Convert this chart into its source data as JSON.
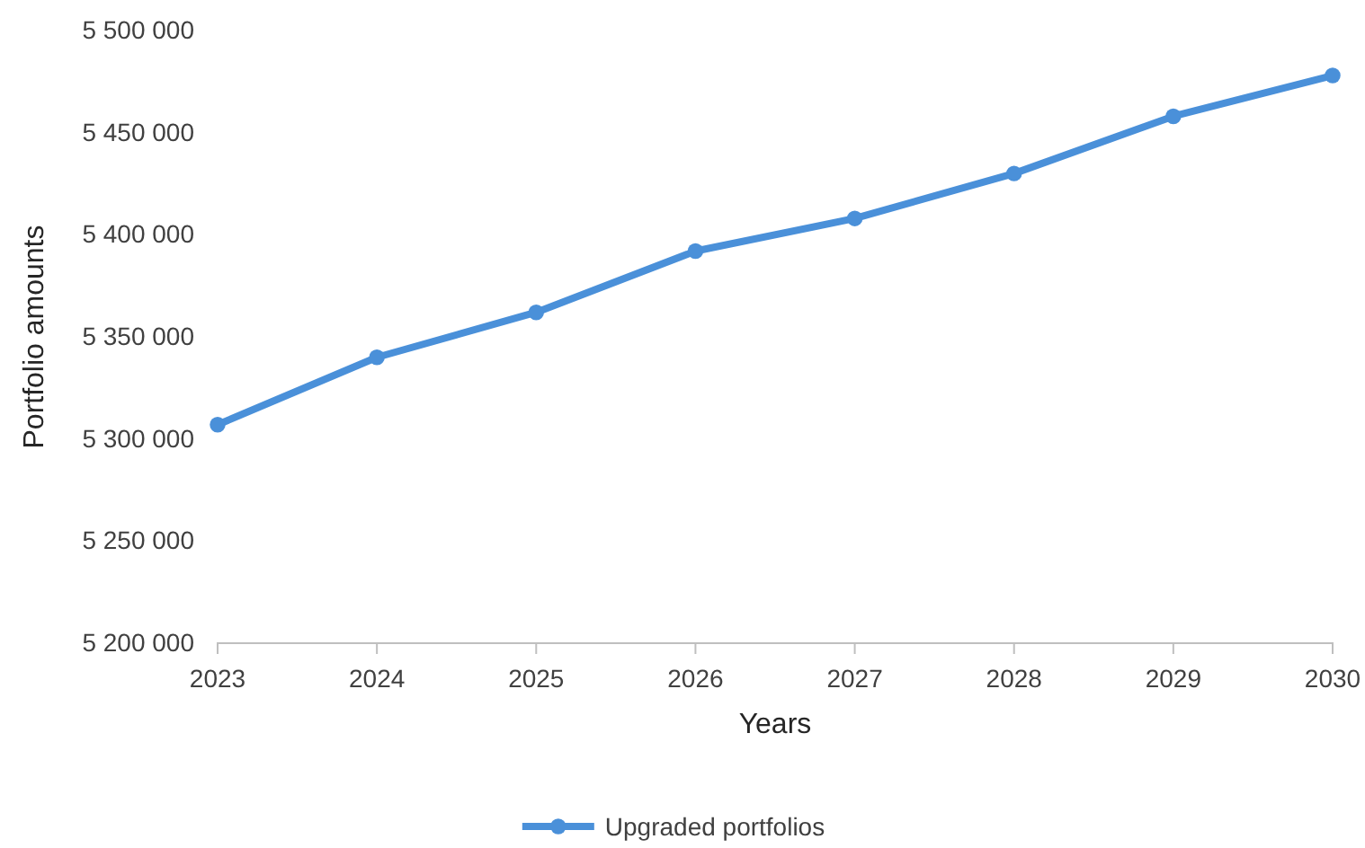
{
  "chart_data": {
    "type": "line",
    "xlabel": "Years",
    "ylabel": "Portfolio amounts",
    "x": [
      2023,
      2024,
      2025,
      2026,
      2027,
      2028,
      2029,
      2030
    ],
    "series": [
      {
        "name": "Upgraded portfolios",
        "color": "#4a90d9",
        "values": [
          5307000,
          5340000,
          5362000,
          5392000,
          5408000,
          5430000,
          5458000,
          5478000
        ]
      }
    ],
    "xlim": [
      2023,
      2030
    ],
    "xticks": [
      2023,
      2024,
      2025,
      2026,
      2027,
      2028,
      2029,
      2030
    ],
    "ylim": [
      5200000,
      5500000
    ],
    "yticks": [
      {
        "value": 5200000,
        "label": "5 200 000"
      },
      {
        "value": 5250000,
        "label": "5 250 000"
      },
      {
        "value": 5300000,
        "label": "5 300 000"
      },
      {
        "value": 5350000,
        "label": "5 350 000"
      },
      {
        "value": 5400000,
        "label": "5 400 000"
      },
      {
        "value": 5450000,
        "label": "5 450 000"
      },
      {
        "value": 5500000,
        "label": "5 500 000"
      }
    ],
    "grid": false,
    "legend": "bottom",
    "marker": "circle",
    "line_style": "solid"
  }
}
